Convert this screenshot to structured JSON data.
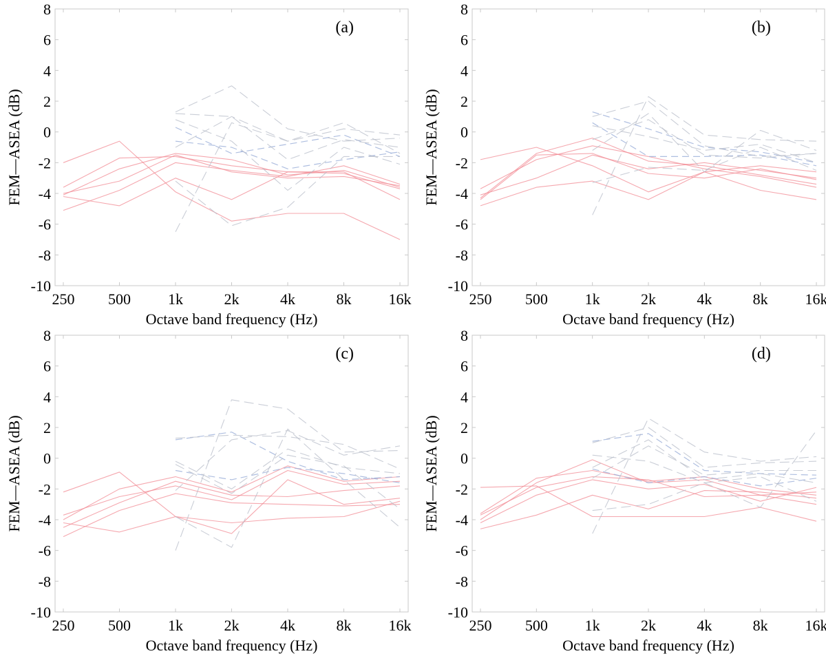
{
  "colors": {
    "red_series": "#f28a93",
    "blue_series": "#9aaed8",
    "gray_series": "#b7bcc8",
    "axis": "#c8c8c8"
  },
  "chart_data": [
    {
      "type": "line",
      "panel_label": "(a)",
      "xlabel": "Octave band frequency (Hz)",
      "ylabel": "FEM—ASEA (dB)",
      "categories": [
        "250",
        "500",
        "1k",
        "2k",
        "4k",
        "8k",
        "16k"
      ],
      "x_tick_labels": [
        "250",
        "500",
        "1k",
        "2k",
        "4k",
        "8k",
        "16k"
      ],
      "y_tick_labels": [
        "8",
        "6",
        "4",
        "2",
        "0",
        "-2",
        "-4",
        "-6",
        "-8",
        "-10"
      ],
      "ylim": [
        -10,
        8
      ],
      "grid": false,
      "series": [
        {
          "name": "red-1",
          "group": "red",
          "values": [
            -2.0,
            -0.6,
            -3.9,
            -5.8,
            -5.3,
            -5.3,
            -7.0
          ]
        },
        {
          "name": "red-2",
          "group": "red",
          "values": [
            -4.2,
            -4.8,
            -3.0,
            -4.4,
            -2.6,
            -2.6,
            -4.4
          ]
        },
        {
          "name": "red-3",
          "group": "red",
          "values": [
            -4.1,
            -2.4,
            -1.4,
            -1.8,
            -2.8,
            -2.5,
            -3.6
          ]
        },
        {
          "name": "red-4",
          "group": "red",
          "values": [
            -3.6,
            -1.7,
            -1.6,
            -2.2,
            -2.6,
            -2.7,
            -3.7
          ]
        },
        {
          "name": "red-5",
          "group": "red",
          "values": [
            -5.1,
            -3.8,
            -2.0,
            -2.5,
            -2.9,
            -2.2,
            -3.4
          ]
        },
        {
          "name": "red-6",
          "group": "red",
          "values": [
            -4.0,
            -3.2,
            -1.5,
            -2.6,
            -3.0,
            -2.9,
            -3.5
          ]
        },
        {
          "name": "blue-1",
          "group": "blue",
          "values": [
            null,
            null,
            0.3,
            -1.4,
            -0.8,
            -0.2,
            -1.6
          ]
        },
        {
          "name": "blue-2",
          "group": "blue",
          "values": [
            null,
            null,
            -0.6,
            -1.0,
            -2.4,
            -1.8,
            -1.3
          ]
        },
        {
          "name": "gray-1",
          "group": "gray",
          "values": [
            null,
            null,
            -6.5,
            0.6,
            -0.6,
            0.2,
            -0.2
          ]
        },
        {
          "name": "gray-2",
          "group": "gray",
          "values": [
            null,
            null,
            1.3,
            3.0,
            0.2,
            -0.6,
            -0.4
          ]
        },
        {
          "name": "gray-3",
          "group": "gray",
          "values": [
            null,
            null,
            -1.0,
            1.0,
            -0.6,
            0.6,
            -1.4
          ]
        },
        {
          "name": "gray-4",
          "group": "gray",
          "values": [
            null,
            null,
            -3.2,
            -6.1,
            -4.9,
            -1.6,
            -1.6
          ]
        },
        {
          "name": "gray-5",
          "group": "gray",
          "values": [
            null,
            null,
            0.8,
            -0.6,
            -3.8,
            -1.0,
            -2.1
          ]
        },
        {
          "name": "gray-6",
          "group": "gray",
          "values": [
            null,
            null,
            1.2,
            1.0,
            -1.8,
            -0.5,
            -1.0
          ]
        }
      ]
    },
    {
      "type": "line",
      "panel_label": "(b)",
      "xlabel": "Octave band frequency (Hz)",
      "ylabel": "FEM—ASEA (dB)",
      "categories": [
        "250",
        "500",
        "1k",
        "2k",
        "4k",
        "8k",
        "16k"
      ],
      "x_tick_labels": [
        "250",
        "500",
        "1k",
        "2k",
        "4k",
        "8k",
        "16k"
      ],
      "y_tick_labels": [
        "8",
        "6",
        "4",
        "2",
        "0",
        "-2",
        "-4",
        "-6",
        "-8",
        "-10"
      ],
      "ylim": [
        -10,
        8
      ],
      "grid": false,
      "series": [
        {
          "name": "red-1",
          "group": "red",
          "values": [
            -1.8,
            -1.0,
            -2.2,
            -3.9,
            -2.6,
            -3.8,
            -4.4
          ]
        },
        {
          "name": "red-2",
          "group": "red",
          "values": [
            -4.3,
            -1.4,
            -0.4,
            -1.9,
            -2.2,
            -2.8,
            -3.4
          ]
        },
        {
          "name": "red-3",
          "group": "red",
          "values": [
            -4.1,
            -3.0,
            -1.5,
            -2.4,
            -2.0,
            -2.5,
            -3.0
          ]
        },
        {
          "name": "red-4",
          "group": "red",
          "values": [
            -3.7,
            -1.8,
            -0.9,
            -1.6,
            -2.4,
            -2.9,
            -3.6
          ]
        },
        {
          "name": "red-5",
          "group": "red",
          "values": [
            -4.8,
            -3.6,
            -3.2,
            -4.4,
            -2.6,
            -2.2,
            -2.6
          ]
        },
        {
          "name": "red-6",
          "group": "red",
          "values": [
            -4.4,
            -1.5,
            -1.4,
            -2.7,
            -3.0,
            -2.4,
            -3.1
          ]
        },
        {
          "name": "blue-1",
          "group": "blue",
          "values": [
            null,
            null,
            1.3,
            0.2,
            -1.0,
            -1.3,
            -2.0
          ]
        },
        {
          "name": "blue-2",
          "group": "blue",
          "values": [
            null,
            null,
            0.6,
            -1.6,
            -1.6,
            -1.5,
            -2.2
          ]
        },
        {
          "name": "gray-1",
          "group": "gray",
          "values": [
            null,
            null,
            -5.4,
            2.3,
            -0.2,
            -0.5,
            -0.6
          ]
        },
        {
          "name": "gray-2",
          "group": "gray",
          "values": [
            null,
            null,
            1.0,
            2.0,
            -0.9,
            -1.6,
            -1.4
          ]
        },
        {
          "name": "gray-3",
          "group": "gray",
          "values": [
            null,
            null,
            -1.2,
            1.2,
            -2.6,
            0.1,
            -1.2
          ]
        },
        {
          "name": "gray-4",
          "group": "gray",
          "values": [
            null,
            null,
            -3.3,
            -2.3,
            -2.5,
            -1.0,
            -2.5
          ]
        },
        {
          "name": "gray-5",
          "group": "gray",
          "values": [
            null,
            null,
            0.4,
            -0.3,
            -1.2,
            -0.8,
            -2.0
          ]
        },
        {
          "name": "gray-6",
          "group": "gray",
          "values": [
            null,
            null,
            -0.5,
            0.8,
            -1.5,
            -1.7,
            -1.4
          ]
        }
      ]
    },
    {
      "type": "line",
      "panel_label": "(c)",
      "xlabel": "Octave band frequency (Hz)",
      "ylabel": "FEM—ASEA (dB)",
      "categories": [
        "250",
        "500",
        "1k",
        "2k",
        "4k",
        "8k",
        "16k"
      ],
      "x_tick_labels": [
        "250",
        "500",
        "1k",
        "2k",
        "4k",
        "8k",
        "16k"
      ],
      "y_tick_labels": [
        "8",
        "6",
        "4",
        "2",
        "0",
        "-2",
        "-4",
        "-6",
        "-8",
        "-10"
      ],
      "ylim": [
        -10,
        8
      ],
      "grid": false,
      "series": [
        {
          "name": "red-1",
          "group": "red",
          "values": [
            -2.2,
            -0.9,
            -3.8,
            -4.2,
            -3.9,
            -3.8,
            -2.8
          ]
        },
        {
          "name": "red-2",
          "group": "red",
          "values": [
            -4.2,
            -4.8,
            -3.8,
            -4.9,
            -1.4,
            -3.0,
            -2.6
          ]
        },
        {
          "name": "red-3",
          "group": "red",
          "values": [
            -4.0,
            -2.0,
            -1.2,
            -2.2,
            -0.5,
            -1.5,
            -1.2
          ]
        },
        {
          "name": "red-4",
          "group": "red",
          "values": [
            -3.7,
            -2.5,
            -1.8,
            -2.7,
            -0.8,
            -1.7,
            -1.5
          ]
        },
        {
          "name": "red-5",
          "group": "red",
          "values": [
            -5.1,
            -3.4,
            -2.3,
            -2.9,
            -3.0,
            -3.1,
            -3.0
          ]
        },
        {
          "name": "red-6",
          "group": "red",
          "values": [
            -4.5,
            -2.9,
            -1.5,
            -2.4,
            -2.5,
            -2.1,
            -1.8
          ]
        },
        {
          "name": "blue-1",
          "group": "blue",
          "values": [
            null,
            null,
            1.2,
            1.7,
            -0.2,
            -1.4,
            -1.2
          ]
        },
        {
          "name": "blue-2",
          "group": "blue",
          "values": [
            null,
            null,
            -0.8,
            -1.4,
            -0.6,
            -1.0,
            -1.6
          ]
        },
        {
          "name": "gray-1",
          "group": "gray",
          "values": [
            null,
            null,
            -6.0,
            3.8,
            3.2,
            0.4,
            0.5
          ]
        },
        {
          "name": "gray-2",
          "group": "gray",
          "values": [
            null,
            null,
            1.3,
            1.5,
            1.4,
            0.9,
            -0.7
          ]
        },
        {
          "name": "gray-3",
          "group": "gray",
          "values": [
            null,
            null,
            -2.1,
            1.2,
            1.8,
            0.2,
            0.8
          ]
        },
        {
          "name": "gray-4",
          "group": "gray",
          "values": [
            null,
            null,
            -3.8,
            -5.8,
            1.9,
            -1.4,
            -4.5
          ]
        },
        {
          "name": "gray-5",
          "group": "gray",
          "values": [
            null,
            null,
            -0.4,
            -2.3,
            0.2,
            -0.5,
            -3.3
          ]
        },
        {
          "name": "gray-6",
          "group": "gray",
          "values": [
            null,
            null,
            -0.2,
            -2.0,
            0.6,
            -0.6,
            -1.0
          ]
        }
      ]
    },
    {
      "type": "line",
      "panel_label": "(d)",
      "xlabel": "Octave band frequency (Hz)",
      "ylabel": "FEM—ASEA (dB)",
      "categories": [
        "250",
        "500",
        "1k",
        "2k",
        "4k",
        "8k",
        "16k"
      ],
      "x_tick_labels": [
        "250",
        "500",
        "1k",
        "2k",
        "4k",
        "8k",
        "16k"
      ],
      "y_tick_labels": [
        "8",
        "6",
        "4",
        "2",
        "0",
        "-2",
        "-4",
        "-6",
        "-8",
        "-10"
      ],
      "ylim": [
        -10,
        8
      ],
      "grid": false,
      "series": [
        {
          "name": "red-1",
          "group": "red",
          "values": [
            -1.9,
            -1.8,
            -3.8,
            -3.8,
            -3.8,
            -3.2,
            -4.1
          ]
        },
        {
          "name": "red-2",
          "group": "red",
          "values": [
            -4.0,
            -1.6,
            -0.1,
            -1.6,
            -1.4,
            -2.4,
            -2.2
          ]
        },
        {
          "name": "red-3",
          "group": "red",
          "values": [
            -3.7,
            -1.9,
            -1.2,
            -1.4,
            -2.5,
            -2.4,
            -3.0
          ]
        },
        {
          "name": "red-4",
          "group": "red",
          "values": [
            -4.6,
            -3.7,
            -2.4,
            -3.3,
            -2.1,
            -2.2,
            -2.6
          ]
        },
        {
          "name": "red-5",
          "group": "red",
          "values": [
            -4.2,
            -2.4,
            -1.4,
            -2.0,
            -1.7,
            -2.8,
            -1.9
          ]
        },
        {
          "name": "red-6",
          "group": "red",
          "values": [
            -3.6,
            -1.3,
            -0.8,
            -1.5,
            -1.2,
            -2.0,
            -2.4
          ]
        },
        {
          "name": "blue-1",
          "group": "blue",
          "values": [
            null,
            null,
            1.1,
            1.6,
            -0.8,
            -1.0,
            -1.1
          ]
        },
        {
          "name": "blue-2",
          "group": "blue",
          "values": [
            null,
            null,
            -0.7,
            -1.6,
            -1.2,
            -1.8,
            -1.3
          ]
        },
        {
          "name": "gray-1",
          "group": "gray",
          "values": [
            null,
            null,
            -4.9,
            2.6,
            0.4,
            -0.2,
            0.1
          ]
        },
        {
          "name": "gray-2",
          "group": "gray",
          "values": [
            null,
            null,
            1.0,
            2.0,
            -0.6,
            -0.3,
            -0.2
          ]
        },
        {
          "name": "gray-3",
          "group": "gray",
          "values": [
            null,
            null,
            -0.6,
            1.2,
            -1.4,
            -1.0,
            -1.6
          ]
        },
        {
          "name": "gray-4",
          "group": "gray",
          "values": [
            null,
            null,
            -3.4,
            -3.0,
            -1.6,
            -3.2,
            1.8
          ]
        },
        {
          "name": "gray-5",
          "group": "gray",
          "values": [
            null,
            null,
            0.2,
            -0.2,
            -1.6,
            -1.2,
            -2.8
          ]
        },
        {
          "name": "gray-6",
          "group": "gray",
          "values": [
            null,
            null,
            -1.3,
            0.8,
            -1.1,
            -0.8,
            -0.8
          ]
        }
      ]
    }
  ]
}
